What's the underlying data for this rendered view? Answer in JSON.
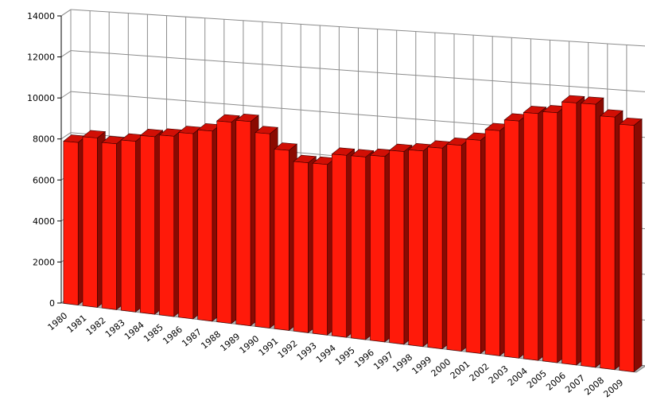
{
  "chart_data": {
    "type": "bar",
    "title": "",
    "xlabel": "",
    "ylabel": "",
    "ylim": [
      0,
      14000
    ],
    "y_ticks": [
      0,
      2000,
      4000,
      6000,
      8000,
      10000,
      12000,
      14000
    ],
    "grid": true,
    "legend": "none",
    "bar_color": "#ff1a0a",
    "categories": [
      "1980",
      "1981",
      "1982",
      "1983",
      "1984",
      "1985",
      "1986",
      "1987",
      "1988",
      "1989",
      "1990",
      "1991",
      "1992",
      "1993",
      "1994",
      "1995",
      "1996",
      "1997",
      "1998",
      "1999",
      "2000",
      "2001",
      "2002",
      "2003",
      "2004",
      "2005",
      "2006",
      "2007",
      "2008",
      "2009"
    ],
    "series": [
      {
        "values": [
          7900,
          8200,
          8000,
          8200,
          8500,
          8600,
          8800,
          9000,
          9500,
          9600,
          9100,
          8400,
          7900,
          7900,
          8400,
          8400,
          8500,
          8800,
          8900,
          9100,
          9300,
          9600,
          10100,
          10600,
          11000,
          11100,
          11600,
          11600,
          11100,
          10800
        ]
      }
    ]
  }
}
